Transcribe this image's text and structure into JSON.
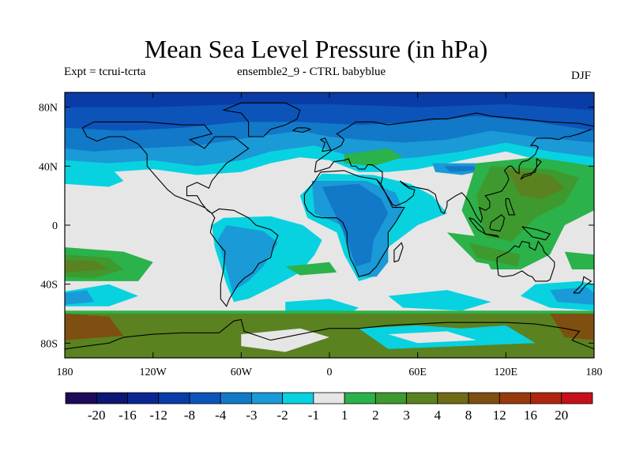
{
  "title": "Mean Sea Level Pressure (in hPa)",
  "expt_label": "Expt = tcrui-tcrta",
  "ensemble_label": "ensemble2_9 - CTRL babyblue",
  "season_label": "DJF",
  "lon_ticks": [
    {
      "value": -180,
      "label": "180"
    },
    {
      "value": -120,
      "label": "120W"
    },
    {
      "value": -60,
      "label": "60W"
    },
    {
      "value": 0,
      "label": "0"
    },
    {
      "value": 60,
      "label": "60E"
    },
    {
      "value": 120,
      "label": "120E"
    },
    {
      "value": 180,
      "label": "180"
    }
  ],
  "lat_ticks": [
    {
      "value": 80,
      "label": "80N"
    },
    {
      "value": 40,
      "label": "40N"
    },
    {
      "value": 0,
      "label": "0"
    },
    {
      "value": -40,
      "label": "40S"
    },
    {
      "value": -80,
      "label": "80S"
    }
  ],
  "colorbar": {
    "colors": [
      "#1e0a5a",
      "#0c1673",
      "#0a2791",
      "#0a3ca8",
      "#0c54b9",
      "#1278c8",
      "#1a9ad6",
      "#08d2e0",
      "#e6e6e6",
      "#2bb24a",
      "#3e9a2e",
      "#5a8220",
      "#6f6a16",
      "#7e4f10",
      "#963b0c",
      "#b02510",
      "#c8101a"
    ],
    "labels": [
      "-20",
      "-16",
      "-12",
      "-8",
      "-4",
      "-3",
      "-2",
      "-1",
      "1",
      "2",
      "3",
      "4",
      "8",
      "12",
      "16",
      "20"
    ]
  },
  "field_colors": {
    "neutral": "#e6e6e6",
    "n1": "#08d2e0",
    "n2": "#1a9ad6",
    "n3": "#1278c8",
    "n4": "#0c54b9",
    "n8": "#0a3ca8",
    "n12": "#0a2791",
    "p1": "#2bb24a",
    "p2": "#3e9a2e",
    "p3": "#5a8220",
    "p4": "#6f6a16",
    "p8": "#7e4f10",
    "coast": "#000000"
  }
}
